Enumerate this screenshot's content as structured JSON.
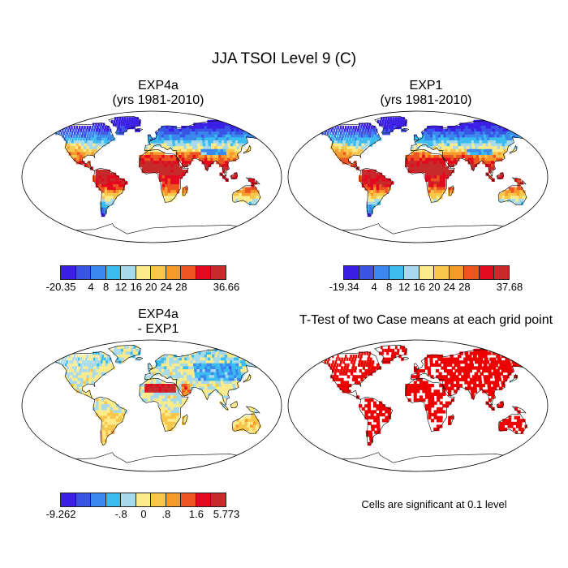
{
  "title": "JJA TSOI Level 9 (C)",
  "panels": [
    {
      "line1": "EXP4a",
      "line2": "(yrs 1981-2010)",
      "kind": "abs"
    },
    {
      "line1": "EXP1",
      "line2": "(yrs 1981-2010)",
      "kind": "abs"
    },
    {
      "line1": "EXP4a",
      "line2": "- EXP1",
      "kind": "diff"
    },
    {
      "line1": "T-Test of two Case means at each grid point",
      "line2": "",
      "kind": "ttest"
    }
  ],
  "colorbars": [
    {
      "labels": [
        "-20.35",
        "4",
        "8",
        "12",
        "16",
        "20",
        "24",
        "28",
        "36.66"
      ]
    },
    {
      "labels": [
        "-19.34",
        "4",
        "8",
        "12",
        "16",
        "20",
        "24",
        "28",
        "37.68"
      ]
    },
    {
      "labels": [
        "-9.262",
        "-.8",
        "0",
        ".8",
        "1.6",
        "5.773"
      ]
    }
  ],
  "colors": {
    "scale": [
      "#3c1fe6",
      "#3a55e6",
      "#3a88ee",
      "#3bbcee",
      "#a6d9ea",
      "#fbeb8a",
      "#f8c64a",
      "#f79a2c",
      "#ec5522",
      "#e3091e",
      "#c62a2a"
    ],
    "ocean": "#ffffff",
    "coast": "#000000",
    "signif": "#ee0000"
  },
  "note": "Cells are significant at 0.1 level"
}
